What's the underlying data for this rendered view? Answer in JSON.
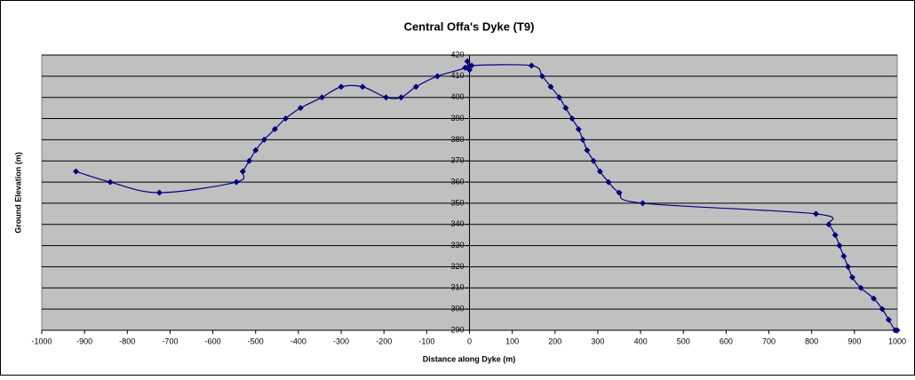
{
  "chart_data": {
    "type": "scatter",
    "title": "Central Offa's Dyke (T9)",
    "xlabel": "Distance along Dyke (m)",
    "ylabel": "Ground Elevation (m)",
    "x": [
      -920,
      -840,
      -725,
      -545,
      -530,
      -515,
      -500,
      -480,
      -455,
      -430,
      -395,
      -345,
      -300,
      -250,
      -195,
      -160,
      -125,
      -75,
      -10,
      -5,
      0,
      5,
      145,
      170,
      190,
      210,
      225,
      240,
      255,
      265,
      275,
      290,
      305,
      325,
      350,
      405,
      810,
      840,
      855,
      865,
      875,
      885,
      895,
      915,
      945,
      965,
      980,
      995,
      1000
    ],
    "values": [
      365,
      360,
      355,
      360,
      365,
      370,
      375,
      380,
      385,
      390,
      395,
      400,
      405,
      405,
      400,
      400,
      405,
      410,
      414,
      417,
      413,
      415,
      415,
      410,
      405,
      400,
      395,
      390,
      385,
      380,
      375,
      370,
      365,
      360,
      355,
      350,
      345,
      340,
      335,
      330,
      325,
      320,
      315,
      310,
      305,
      300,
      295,
      290,
      290
    ],
    "color": "#000080",
    "smooth": true,
    "grid": true,
    "background": "#c0c0c0",
    "xlim": [
      -1000,
      1000
    ],
    "xticks": [
      -1000,
      -900,
      -800,
      -700,
      -600,
      -500,
      -400,
      -300,
      -200,
      -100,
      0,
      100,
      200,
      300,
      400,
      500,
      600,
      700,
      800,
      900,
      1000
    ],
    "ylim": [
      290,
      420
    ],
    "yticks": [
      290,
      300,
      310,
      320,
      330,
      340,
      350,
      360,
      370,
      380,
      390,
      400,
      410,
      420
    ]
  }
}
